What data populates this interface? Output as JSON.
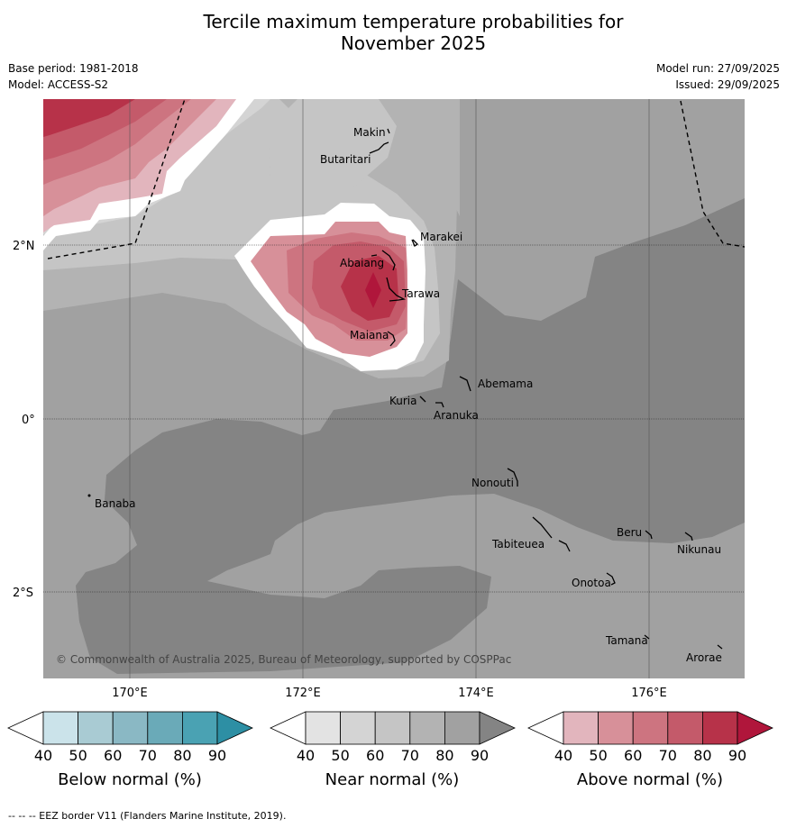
{
  "title": {
    "line1": "Tercile maximum temperature probabilities for",
    "line2": "November 2025"
  },
  "meta": {
    "base_period": "Base period: 1981-2018",
    "model": "Model: ACCESS-S2",
    "model_run": "Model run: 27/09/2025",
    "issued": "Issued: 29/09/2025"
  },
  "map": {
    "lon_ticks": [
      "170°E",
      "172°E",
      "174°E",
      "176°E"
    ],
    "lat_ticks": [
      "2°N",
      "0°",
      "2°S"
    ],
    "copyright": "© Commonwealth of Australia 2025, Bureau of Meteorology, supported by COSPPac",
    "places": [
      "Makin",
      "Butaritari",
      "Marakei",
      "Abaiang",
      "Tarawa",
      "Maiana",
      "Abemama",
      "Kuria",
      "Aranuka",
      "Nonouti",
      "Banaba",
      "Beru",
      "Nikunau",
      "Tabiteuea",
      "Onotoa",
      "Tamana",
      "Arorae"
    ]
  },
  "colorbars": [
    {
      "label": "Below normal (%)",
      "ticks": [
        "40",
        "50",
        "60",
        "70",
        "80",
        "90"
      ],
      "colors": [
        "#ffffff",
        "#cbe3ea",
        "#a9cbd3",
        "#8ab8c4",
        "#6aaab8",
        "#4aa2b3",
        "#2d8fa4"
      ]
    },
    {
      "label": "Near normal (%)",
      "ticks": [
        "40",
        "50",
        "60",
        "70",
        "80",
        "90"
      ],
      "colors": [
        "#ffffff",
        "#e3e3e3",
        "#d4d4d4",
        "#c5c5c5",
        "#b3b3b3",
        "#a1a1a1",
        "#848484"
      ]
    },
    {
      "label": "Above normal (%)",
      "ticks": [
        "40",
        "50",
        "60",
        "70",
        "80",
        "90"
      ],
      "colors": [
        "#ffffff",
        "#e2b5bd",
        "#d79099",
        "#cd7480",
        "#c45a6a",
        "#b73249",
        "#b0163b"
      ]
    }
  ],
  "footnote": "-- -- -- EEZ border V11 (Flanders Marine Institute, 2019)."
}
